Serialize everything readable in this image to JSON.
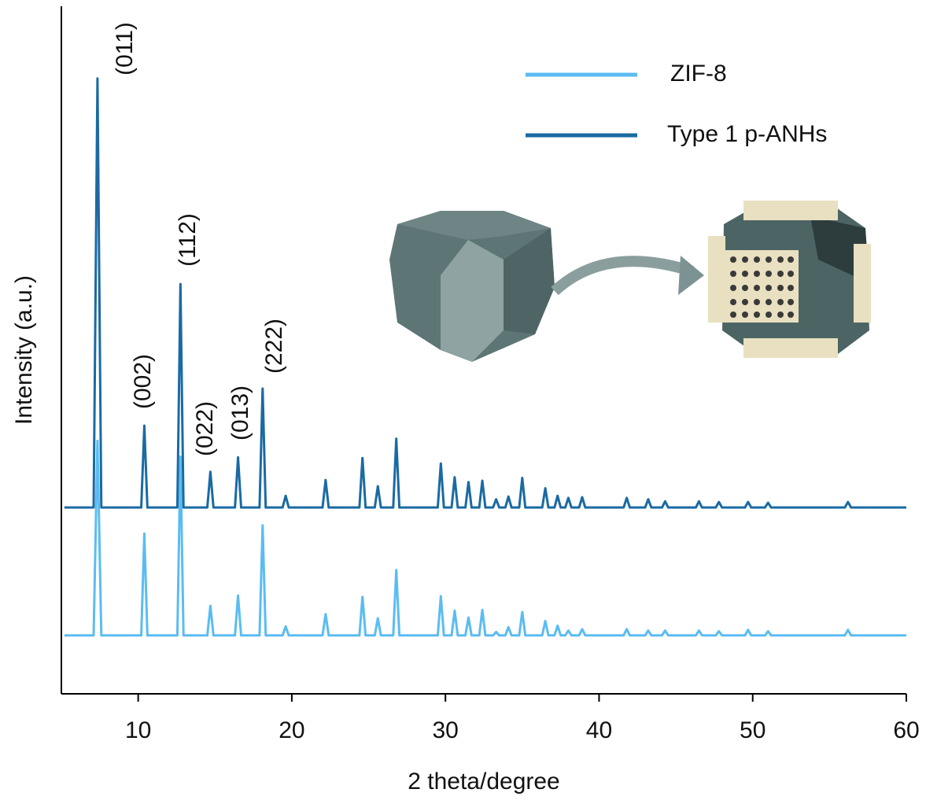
{
  "chart_data": {
    "type": "line",
    "x_label": "2 theta/degree",
    "y_label": "Intensity (a.u.)",
    "x": [
      5.2,
      7.1,
      7.35,
      7.6,
      10.2,
      10.4,
      10.6,
      12.55,
      12.75,
      12.95,
      14.5,
      14.7,
      14.9,
      16.3,
      16.5,
      16.7,
      17.9,
      18.1,
      18.3,
      19.4,
      19.6,
      19.8,
      22.0,
      22.2,
      22.4,
      24.4,
      24.6,
      24.8,
      25.4,
      25.6,
      25.8,
      26.6,
      26.8,
      27.0,
      29.5,
      29.7,
      29.9,
      30.4,
      30.6,
      30.8,
      31.3,
      31.5,
      31.7,
      32.2,
      32.4,
      32.6,
      33.1,
      33.3,
      33.5,
      33.9,
      34.1,
      34.3,
      34.8,
      35.0,
      35.2,
      36.3,
      36.5,
      36.7,
      37.1,
      37.3,
      37.5,
      37.8,
      38.0,
      38.2,
      38.7,
      38.9,
      39.1,
      41.6,
      41.8,
      42.0,
      43.0,
      43.2,
      43.4,
      44.1,
      44.3,
      44.5,
      46.3,
      46.5,
      46.7,
      47.6,
      47.8,
      48.0,
      49.5,
      49.7,
      49.9,
      50.8,
      51.0,
      51.2,
      56.0,
      56.2,
      56.4,
      60
    ],
    "series": [
      {
        "name": "ZIF-8",
        "color": "#5bbcf2",
        "values": [
          8.5,
          8.5,
          36.8,
          8.5,
          8.5,
          23.3,
          8.5,
          8.5,
          34.5,
          8.5,
          8.5,
          12.8,
          8.5,
          8.5,
          14.3,
          8.5,
          8.5,
          24.5,
          8.5,
          8.5,
          9.8,
          8.5,
          8.5,
          11.6,
          8.5,
          8.5,
          14.1,
          8.5,
          8.5,
          11.0,
          8.5,
          8.5,
          18.0,
          8.5,
          8.5,
          14.2,
          8.5,
          8.5,
          12.1,
          8.5,
          8.5,
          11.1,
          8.5,
          8.5,
          12.2,
          8.5,
          8.5,
          9.0,
          8.5,
          8.5,
          9.7,
          8.5,
          8.5,
          11.9,
          8.5,
          8.5,
          10.6,
          8.5,
          8.5,
          9.9,
          8.5,
          8.5,
          9.2,
          8.5,
          8.5,
          9.4,
          8.5,
          8.5,
          9.4,
          8.5,
          8.5,
          9.2,
          8.5,
          8.5,
          9.2,
          8.5,
          8.5,
          9.2,
          8.5,
          8.5,
          9.1,
          8.5,
          8.5,
          9.3,
          8.5,
          8.5,
          9.1,
          8.5,
          8.5,
          9.3,
          8.5,
          8.5
        ]
      },
      {
        "name": "Type 1 p-ANHs",
        "color": "#1a6aa3",
        "values": [
          27.1,
          27.1,
          89.5,
          27.1,
          27.1,
          39.0,
          27.1,
          27.1,
          59.6,
          27.1,
          27.1,
          32.3,
          27.1,
          27.1,
          34.4,
          27.1,
          27.1,
          44.4,
          27.1,
          27.1,
          28.8,
          27.1,
          27.1,
          31.1,
          27.1,
          27.1,
          34.3,
          27.1,
          27.1,
          30.2,
          27.1,
          27.1,
          37.1,
          27.1,
          27.1,
          33.5,
          27.1,
          27.1,
          31.5,
          27.1,
          27.1,
          30.8,
          27.1,
          27.1,
          31.0,
          27.1,
          27.1,
          28.3,
          27.1,
          27.1,
          28.7,
          27.1,
          27.1,
          31.4,
          27.1,
          27.1,
          29.9,
          27.1,
          27.1,
          28.8,
          27.1,
          27.1,
          28.5,
          27.1,
          27.1,
          28.6,
          27.1,
          27.1,
          28.5,
          27.1,
          27.1,
          28.3,
          27.1,
          27.1,
          28.0,
          27.1,
          27.1,
          28.0,
          27.1,
          27.1,
          27.9,
          27.1,
          27.1,
          27.9,
          27.1,
          27.1,
          27.8,
          27.1,
          27.1,
          27.9,
          27.1,
          27.1
        ]
      }
    ],
    "annotations": [
      "(011)",
      "(002)",
      "(112)",
      "(022)",
      "(013)",
      "(222)"
    ],
    "xlim": [
      5,
      60
    ],
    "xticks": [
      10,
      20,
      30,
      40,
      50,
      60
    ],
    "ylim": [
      0,
      100
    ],
    "legend": "top-right"
  }
}
